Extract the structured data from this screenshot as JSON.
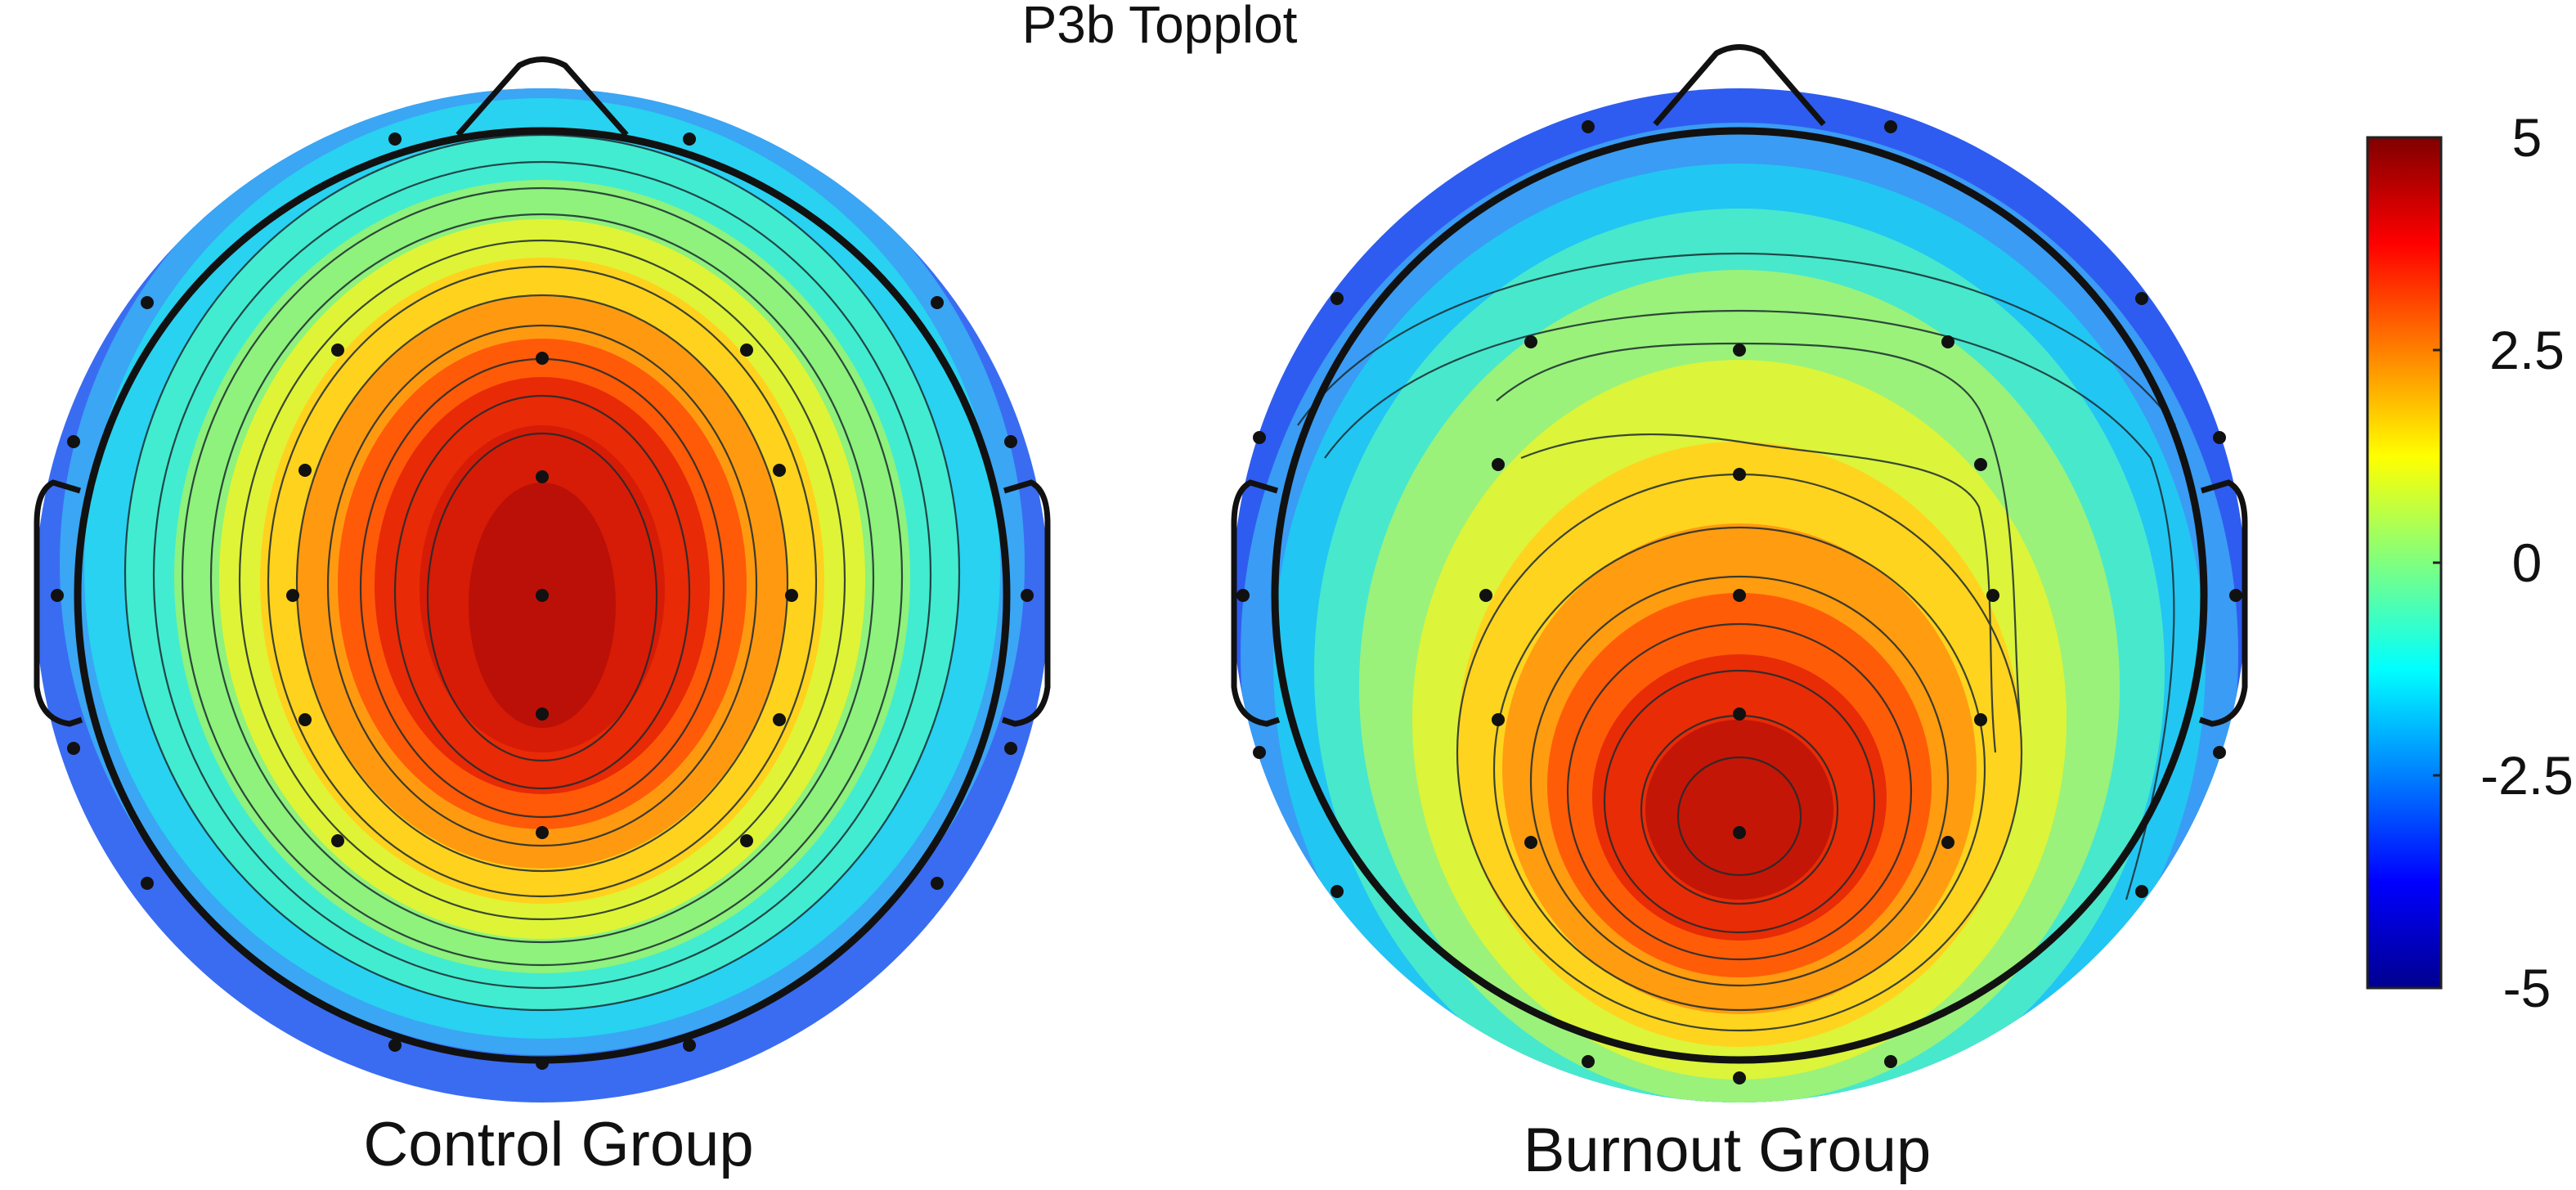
{
  "chart_data": {
    "type": "heatmap",
    "subtype": "eeg-topographic-map",
    "title": "P3b Topplot",
    "panels": [
      {
        "label": "Control Group",
        "peak_amplitude": 5,
        "peak_location": "central-parietal midline (Cz-Pz)",
        "minimum_amplitude": -5,
        "minimum_location": "scalp periphery",
        "electrodes_shown": 30
      },
      {
        "label": "Burnout Group",
        "peak_amplitude": 4,
        "peak_location": "parietal midline (Pz)",
        "minimum_amplitude": -5,
        "minimum_location": "scalp periphery",
        "electrodes_shown": 30
      }
    ],
    "colorbar": {
      "colormap": "jet",
      "range": [
        -5,
        5
      ],
      "ticks": [
        "5",
        "2.5",
        "0",
        "-2.5",
        "-5"
      ],
      "tick_values": [
        5,
        2.5,
        0,
        -2.5,
        -5
      ],
      "placement": "right"
    },
    "contour_lines": true,
    "electrode_markers": true
  }
}
